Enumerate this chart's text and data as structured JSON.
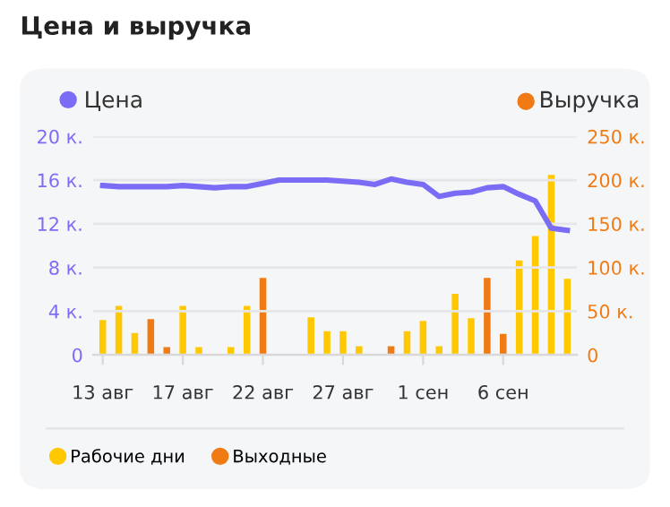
{
  "chart_data": {
    "type": "bar",
    "title": "Цена и выручка",
    "y2label": "Выручка",
    "categories": [
      "13 авг",
      null,
      null,
      null,
      null,
      "17 авг",
      null,
      null,
      null,
      null,
      "22 авг",
      null,
      null,
      null,
      null,
      "27 авг",
      null,
      null,
      null,
      null,
      "1 сен",
      null,
      null,
      null,
      null,
      "6 сен",
      null,
      null,
      null,
      null
    ],
    "series": [
      {
        "name": "Цена",
        "type": "line",
        "color": "#7b6cf6",
        "values": [
          15.5,
          15.4,
          15.4,
          15.4,
          15.4,
          15.5,
          15.4,
          15.3,
          15.4,
          15.4,
          15.7,
          16.0,
          16.0,
          16.0,
          16.0,
          15.9,
          15.8,
          15.6,
          16.1,
          15.8,
          15.6,
          14.5,
          14.8,
          14.9,
          15.3,
          15.4,
          14.7,
          14.1,
          11.6,
          11.4
        ]
      },
      {
        "name": "Рабочие дни",
        "axis": "y2",
        "color": "#ffc800",
        "values": [
          40,
          56,
          25,
          null,
          null,
          56,
          9,
          null,
          9,
          56,
          null,
          null,
          null,
          43,
          27,
          27,
          10,
          null,
          null,
          27,
          39,
          10,
          70,
          42,
          null,
          null,
          108,
          136,
          206,
          87
        ]
      },
      {
        "name": "Выходные",
        "axis": "y2",
        "color": "#f07b14",
        "values": [
          null,
          null,
          null,
          41,
          9,
          null,
          null,
          null,
          null,
          null,
          88,
          null,
          null,
          null,
          null,
          null,
          null,
          null,
          10,
          null,
          null,
          null,
          null,
          null,
          88,
          24,
          null,
          null,
          null,
          null
        ]
      }
    ],
    "ylim": [
      0,
      20
    ],
    "yticks": [
      0,
      {
        "value": 4,
        "label": "4 к."
      },
      {
        "value": 8,
        "label": "8 к."
      },
      {
        "value": 12,
        "label": "12 к."
      },
      {
        "value": 16,
        "label": "16 к."
      },
      {
        "value": 20,
        "label": "20 к."
      }
    ],
    "y2lim": [
      0,
      250
    ],
    "y2ticks": [
      0,
      {
        "value": 50,
        "label": "50 к."
      },
      {
        "value": 100,
        "label": "100 к."
      },
      {
        "value": 150,
        "label": "150 к."
      },
      {
        "value": 200,
        "label": "200 к."
      },
      {
        "value": 250,
        "label": "250 к."
      }
    ],
    "grid": "y",
    "legend": "bottom",
    "marker": "none"
  }
}
